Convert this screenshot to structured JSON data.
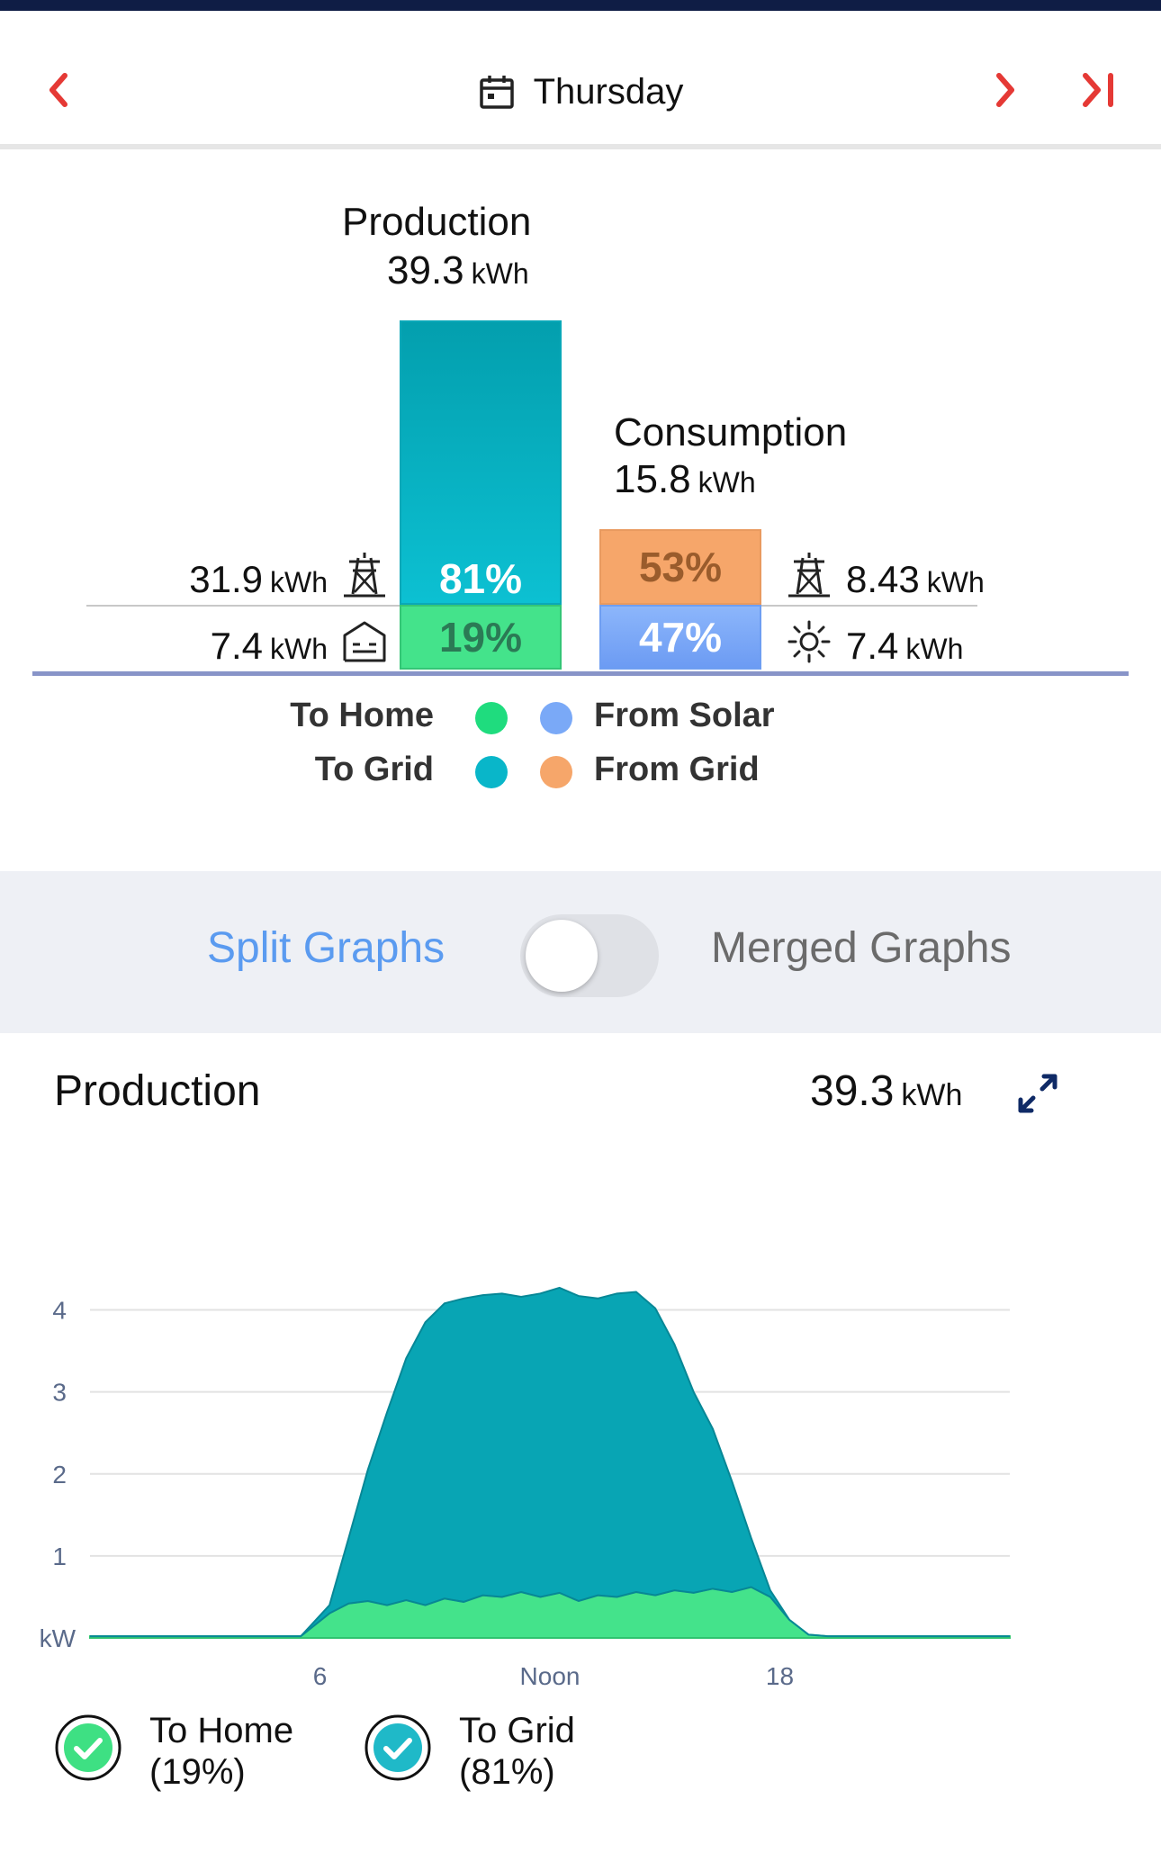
{
  "header": {
    "day": "Thursday",
    "accent_color": "#e53935"
  },
  "summary": {
    "production": {
      "title": "Production",
      "value": "39.3",
      "unit": "kWh",
      "to_grid_pct": "81%",
      "to_home_pct": "19%",
      "to_grid_value": "31.9",
      "to_home_value": "7.4",
      "unit_small": "kWh"
    },
    "consumption": {
      "title": "Consumption",
      "value": "15.8",
      "unit": "kWh",
      "from_grid_pct": "53%",
      "from_solar_pct": "47%",
      "from_grid_value": "8.43",
      "from_solar_value": "7.4",
      "unit_small": "kWh"
    },
    "legend": {
      "to_home": "To Home",
      "to_grid": "To Grid",
      "from_solar": "From Solar",
      "from_grid": "From Grid"
    },
    "colors": {
      "to_home": "#44e38b",
      "to_grid": "#09b6c9",
      "from_solar": "#7aa9f7",
      "from_grid": "#f6a66a"
    }
  },
  "graph_mode": {
    "split_label": "Split Graphs",
    "merged_label": "Merged Graphs",
    "merged_selected": false
  },
  "production_graph": {
    "title": "Production",
    "value": "39.3",
    "unit": "kWh",
    "checkboxes": [
      {
        "label": "To Home",
        "pct": "(19%)",
        "checked": true,
        "color": "#3ee083"
      },
      {
        "label": "To Grid",
        "pct": "(81%)",
        "checked": true,
        "color": "#1fb9c8"
      }
    ]
  },
  "chart_data": {
    "type": "area",
    "title": "Production",
    "ylabel": "kW",
    "ylim": [
      0,
      4.5
    ],
    "xlim": [
      0,
      24
    ],
    "y_ticks": [
      1,
      2,
      3,
      4
    ],
    "x_ticks": [
      {
        "value": 6,
        "label": "6"
      },
      {
        "value": 12,
        "label": "Noon"
      },
      {
        "value": 18,
        "label": "18"
      }
    ],
    "x": [
      0,
      5.5,
      6.25,
      6.75,
      7.25,
      7.75,
      8.25,
      8.75,
      9.25,
      9.75,
      10.25,
      10.75,
      11.25,
      11.75,
      12.25,
      12.75,
      13.25,
      13.75,
      14.25,
      14.75,
      15.25,
      15.75,
      16.25,
      16.75,
      17.25,
      17.75,
      18.25,
      18.75,
      19.25,
      24
    ],
    "series": [
      {
        "name": "To Home",
        "color": "#44e38b",
        "values": [
          0.02,
          0.02,
          0.3,
          0.42,
          0.45,
          0.4,
          0.46,
          0.4,
          0.48,
          0.44,
          0.52,
          0.5,
          0.56,
          0.5,
          0.55,
          0.45,
          0.52,
          0.5,
          0.56,
          0.52,
          0.58,
          0.55,
          0.6,
          0.56,
          0.62,
          0.5,
          0.22,
          0.04,
          0.02,
          0.02
        ]
      },
      {
        "name": "To Grid",
        "color": "#08a5b4",
        "values": [
          0.0,
          0.0,
          0.1,
          0.8,
          1.6,
          2.35,
          2.95,
          3.45,
          3.6,
          3.7,
          3.66,
          3.7,
          3.6,
          3.7,
          3.72,
          3.72,
          3.62,
          3.7,
          3.66,
          3.5,
          3.0,
          2.45,
          1.95,
          1.35,
          0.6,
          0.08,
          0.0,
          0.0,
          0.0,
          0.0
        ]
      }
    ]
  }
}
